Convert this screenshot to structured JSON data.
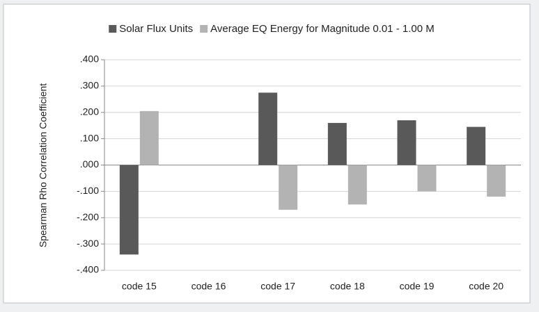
{
  "chart_data": {
    "type": "bar",
    "categories": [
      "code 15",
      "code 16",
      "code 17",
      "code 18",
      "code 19",
      "code 20"
    ],
    "series": [
      {
        "name": "Solar Flux Units",
        "color": "#595959",
        "values": [
          -0.34,
          null,
          0.275,
          0.16,
          0.17,
          0.145
        ]
      },
      {
        "name": "Average EQ Energy for Magnitude 0.01 - 1.00 M",
        "color": "#b3b3b3",
        "values": [
          0.205,
          null,
          -0.17,
          -0.15,
          -0.1,
          -0.12
        ]
      }
    ],
    "y_axis_label": "Spearman Rho Correlation Coefficient",
    "ylim": [
      -0.4,
      0.4
    ],
    "yticks": [
      {
        "value": -0.4,
        "label": "-.400"
      },
      {
        "value": -0.3,
        "label": "-.300"
      },
      {
        "value": -0.2,
        "label": "-.200"
      },
      {
        "value": -0.1,
        "label": "-.100"
      },
      {
        "value": 0,
        "label": ".000"
      },
      {
        "value": 0.1,
        "label": ".100"
      },
      {
        "value": 0.2,
        "label": ".200"
      },
      {
        "value": 0.3,
        "label": ".300"
      },
      {
        "value": 0.4,
        "label": ".400"
      }
    ],
    "grid": true,
    "legend": "top"
  }
}
